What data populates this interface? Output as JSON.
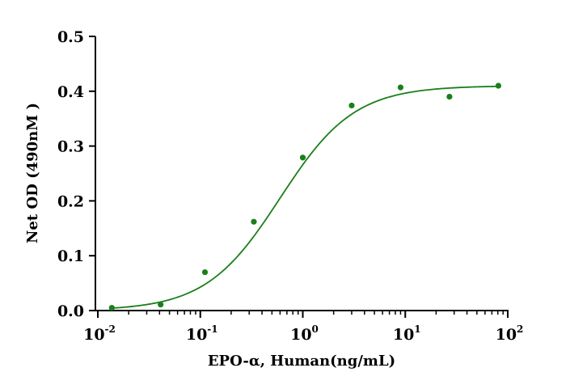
{
  "chart_data": {
    "type": "scatter",
    "title": "",
    "xlabel": "EPO-α, Human(ng/mL)",
    "ylabel": "Net OD (490nM )",
    "x_scale": "log",
    "xlim": [
      0.01,
      100
    ],
    "ylim": [
      0,
      0.5
    ],
    "x_ticks": [
      {
        "value": 0.01,
        "base": "10",
        "exp": "-2"
      },
      {
        "value": 0.1,
        "base": "10",
        "exp": "-1"
      },
      {
        "value": 1,
        "base": "10",
        "exp": "0"
      },
      {
        "value": 10,
        "base": "10",
        "exp": "1"
      },
      {
        "value": 100,
        "base": "10",
        "exp": "2"
      }
    ],
    "y_ticks": [
      "0.0",
      "0.1",
      "0.2",
      "0.3",
      "0.4",
      "0.5"
    ],
    "grid": false,
    "color": "#1a7f1a",
    "series": [
      {
        "points": [
          {
            "x": 0.0137,
            "y": 0.005
          },
          {
            "x": 0.041,
            "y": 0.011
          },
          {
            "x": 0.111,
            "y": 0.07
          },
          {
            "x": 0.333,
            "y": 0.162
          },
          {
            "x": 1.0,
            "y": 0.279
          },
          {
            "x": 3.0,
            "y": 0.374
          },
          {
            "x": 9.0,
            "y": 0.407
          },
          {
            "x": 27.0,
            "y": 0.39
          },
          {
            "x": 81.0,
            "y": 0.41
          }
        ],
        "fit": {
          "model": "4PL",
          "bottom": 0.0,
          "top": 0.41,
          "ec50": 0.6,
          "hill": 1.2
        }
      }
    ]
  }
}
